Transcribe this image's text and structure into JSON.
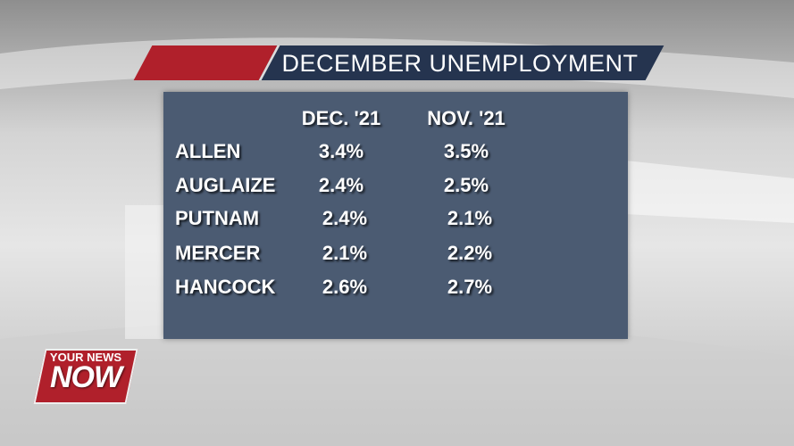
{
  "header": {
    "title": "DECEMBER UNEMPLOYMENT"
  },
  "table": {
    "columns": [
      "DEC. '21",
      "NOV. '21"
    ],
    "rows": [
      {
        "label": "ALLEN",
        "values": [
          "3.4%",
          "3.5%"
        ]
      },
      {
        "label": "AUGLAIZE",
        "values": [
          "2.4%",
          "2.5%"
        ]
      },
      {
        "label": "PUTNAM",
        "values": [
          "2.4%",
          "2.1%"
        ]
      },
      {
        "label": "MERCER",
        "values": [
          "2.1%",
          "2.2%"
        ]
      },
      {
        "label": "HANCOCK",
        "values": [
          "2.6%",
          "2.7%"
        ]
      }
    ]
  },
  "logo": {
    "top": "YOUR NEWS",
    "main": "NOW"
  }
}
